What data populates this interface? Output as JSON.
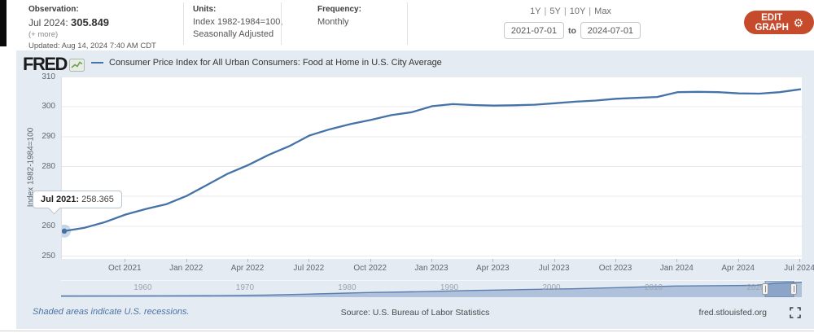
{
  "header": {
    "observation": {
      "label": "Observation:",
      "date": "Jul 2024:",
      "value": "305.849",
      "more": "(+ more)",
      "updated": "Updated: Aug 14, 2024 7:40 AM CDT"
    },
    "units": {
      "label": "Units:",
      "line1": "Index 1982-1984=100,",
      "line2": "Seasonally Adjusted"
    },
    "frequency": {
      "label": "Frequency:",
      "value": "Monthly"
    },
    "range": {
      "links": [
        "1Y",
        "5Y",
        "10Y",
        "Max"
      ],
      "separator": "|",
      "start_date": "2021-07-01",
      "to_label": "to",
      "end_date": "2024-07-01"
    },
    "edit_button": {
      "label": "EDIT GRAPH",
      "icon": "gear-icon"
    }
  },
  "chart": {
    "brand": "FRED",
    "legend_title": "Consumer Price Index for All Urban Consumers: Food at Home in U.S. City Average",
    "y_axis_title": "Index 1982-1984=100",
    "tooltip": {
      "label": "Jul 2021:",
      "value": "258.365"
    }
  },
  "chart_data": {
    "type": "line",
    "title": "Consumer Price Index for All Urban Consumers: Food at Home in U.S. City Average",
    "ylabel": "Index 1982-1984=100",
    "ylim": [
      250,
      310
    ],
    "yticks": [
      250,
      260,
      270,
      280,
      290,
      300,
      310
    ],
    "grid": "horizontal",
    "x": [
      "Jul 2021",
      "Aug 2021",
      "Sep 2021",
      "Oct 2021",
      "Nov 2021",
      "Dec 2021",
      "Jan 2022",
      "Feb 2022",
      "Mar 2022",
      "Apr 2022",
      "May 2022",
      "Jun 2022",
      "Jul 2022",
      "Aug 2022",
      "Sep 2022",
      "Oct 2022",
      "Nov 2022",
      "Dec 2022",
      "Jan 2023",
      "Feb 2023",
      "Mar 2023",
      "Apr 2023",
      "May 2023",
      "Jun 2023",
      "Jul 2023",
      "Aug 2023",
      "Sep 2023",
      "Oct 2023",
      "Nov 2023",
      "Dec 2023",
      "Jan 2024",
      "Feb 2024",
      "Mar 2024",
      "Apr 2024",
      "May 2024",
      "Jun 2024",
      "Jul 2024"
    ],
    "xtick_labels": [
      "Oct 2021",
      "Jan 2022",
      "Apr 2022",
      "Jul 2022",
      "Oct 2022",
      "Jan 2023",
      "Apr 2023",
      "Jul 2023",
      "Oct 2023",
      "Jan 2024",
      "Apr 2024",
      "Jul 2024"
    ],
    "xtick_positions": [
      3,
      6,
      9,
      12,
      15,
      18,
      21,
      24,
      27,
      30,
      33,
      36
    ],
    "series": [
      {
        "name": "Consumer Price Index for All Urban Consumers: Food at Home in U.S. City Average",
        "color": "#4572a7",
        "values": [
          258.365,
          259.5,
          261.4,
          263.9,
          265.8,
          267.4,
          270.2,
          273.9,
          277.6,
          280.5,
          283.9,
          286.8,
          290.4,
          292.5,
          294.2,
          295.6,
          297.2,
          298.2,
          300.2,
          300.9,
          300.6,
          300.4,
          300.5,
          300.7,
          301.2,
          301.7,
          302.1,
          302.7,
          303.0,
          303.3,
          304.9,
          305.0,
          304.9,
          304.5,
          304.4,
          304.9,
          305.849
        ]
      }
    ],
    "highlight_point": {
      "x": "Jul 2021",
      "value": 258.365
    },
    "navigator": {
      "decade_labels": [
        "1960",
        "1970",
        "1980",
        "1990",
        "2000",
        "2010",
        "2020"
      ],
      "year_range": [
        1952,
        2024.5
      ],
      "years": [
        1952,
        1957,
        1962,
        1967,
        1972,
        1977,
        1982,
        1987,
        1992,
        1997,
        2002,
        2007,
        2012,
        2017,
        2020,
        2022,
        2024.5
      ],
      "values": [
        25,
        27,
        29,
        32,
        42,
        67,
        96,
        113,
        138,
        156,
        173,
        200,
        230,
        238,
        243,
        288,
        306
      ],
      "selected_range": [
        "2021-07-01",
        "2024-07-01"
      ]
    }
  },
  "footer": {
    "recession_note": "Shaded areas indicate U.S. recessions.",
    "source": "Source: U.S. Bureau of Labor Statistics",
    "site": "fred.stlouisfed.org"
  },
  "colors": {
    "line": "#4572a7",
    "edit_button": "#c54b2c",
    "chart_background": "#e4ebf3",
    "navigator_fill": "#a9bdd8",
    "note_link": "#4d74a3"
  }
}
